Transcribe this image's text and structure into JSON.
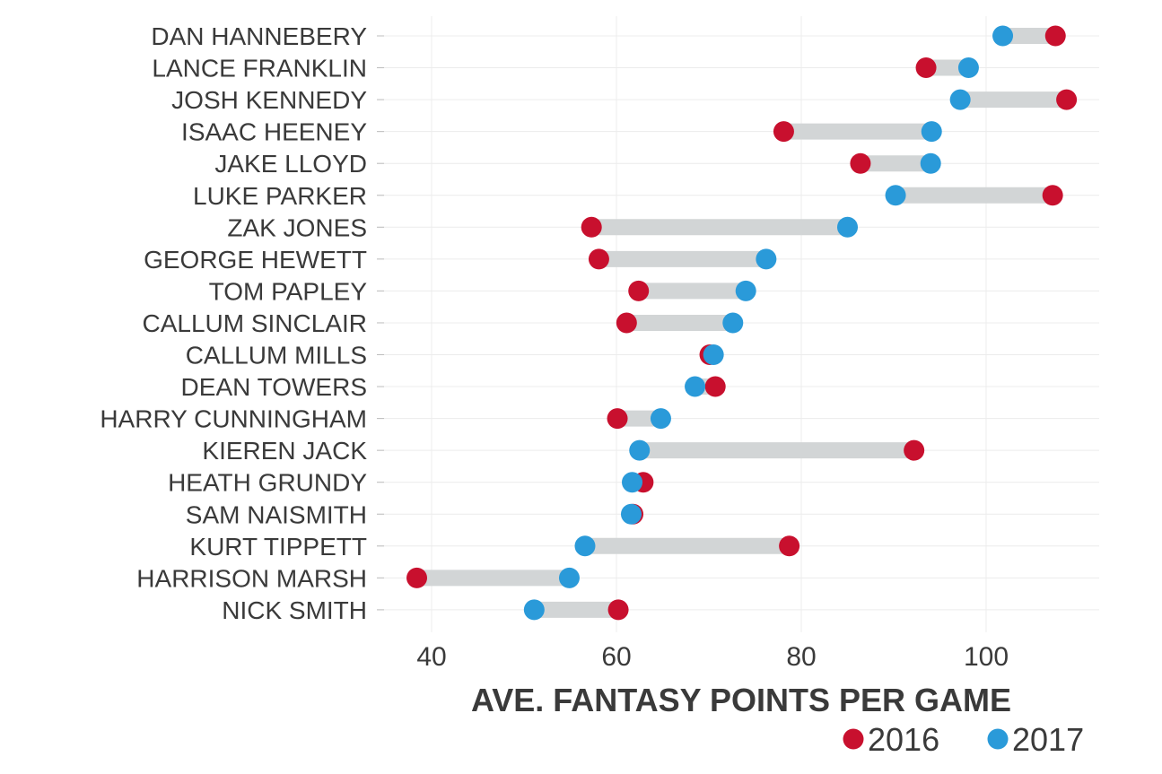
{
  "chart_data": {
    "type": "dumbbell",
    "title": "",
    "xlabel": "AVE. FANTASY POINTS PER GAME",
    "ylabel": "",
    "xlim": [
      35,
      112
    ],
    "xticks": [
      40,
      60,
      80,
      100
    ],
    "grid": true,
    "legend_position": "bottom-right",
    "colors": {
      "2016": "#c8102e",
      "2017": "#2a9ad9",
      "connector": "#d2d5d6",
      "grid": "#ececec",
      "text": "#3a3a3a"
    },
    "series": [
      {
        "name": "2016",
        "values": [
          107.5,
          93.5,
          108.7,
          78.1,
          86.4,
          107.2,
          57.3,
          58.1,
          62.4,
          61.1,
          70.1,
          70.7,
          60.1,
          92.2,
          62.9,
          61.8,
          78.7,
          38.4,
          60.2
        ]
      },
      {
        "name": "2017",
        "values": [
          101.8,
          98.1,
          97.2,
          94.1,
          94.0,
          90.2,
          85.0,
          76.2,
          74.0,
          72.6,
          70.5,
          68.5,
          64.8,
          62.5,
          61.7,
          61.6,
          56.6,
          54.9,
          51.1
        ]
      }
    ],
    "categories": [
      "DAN HANNEBERY",
      "LANCE FRANKLIN",
      "JOSH KENNEDY",
      "ISAAC HEENEY",
      "JAKE LLOYD",
      "LUKE PARKER",
      "ZAK JONES",
      "GEORGE HEWETT",
      "TOM PAPLEY",
      "CALLUM SINCLAIR",
      "CALLUM MILLS",
      "DEAN TOWERS",
      "HARRY CUNNINGHAM",
      "KIEREN JACK",
      "HEATH GRUNDY",
      "SAM NAISMITH",
      "KURT TIPPETT",
      "HARRISON MARSH",
      "NICK SMITH"
    ]
  }
}
